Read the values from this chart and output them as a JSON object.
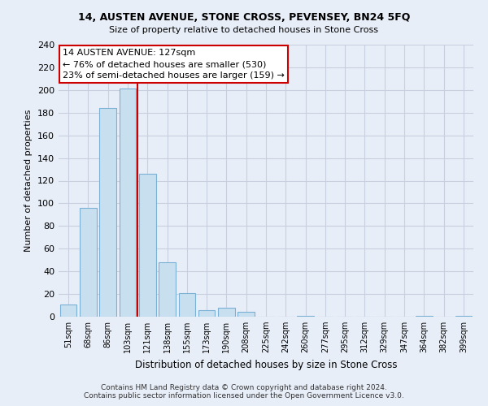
{
  "title": "14, AUSTEN AVENUE, STONE CROSS, PEVENSEY, BN24 5FQ",
  "subtitle": "Size of property relative to detached houses in Stone Cross",
  "xlabel": "Distribution of detached houses by size in Stone Cross",
  "ylabel": "Number of detached properties",
  "bar_labels": [
    "51sqm",
    "68sqm",
    "86sqm",
    "103sqm",
    "121sqm",
    "138sqm",
    "155sqm",
    "173sqm",
    "190sqm",
    "208sqm",
    "225sqm",
    "242sqm",
    "260sqm",
    "277sqm",
    "295sqm",
    "312sqm",
    "329sqm",
    "347sqm",
    "364sqm",
    "382sqm",
    "399sqm"
  ],
  "bar_values": [
    11,
    96,
    184,
    201,
    126,
    48,
    21,
    6,
    8,
    4,
    0,
    0,
    1,
    0,
    0,
    0,
    0,
    0,
    1,
    0,
    1
  ],
  "bar_color": "#c8dff0",
  "bar_edge_color": "#7ab0d4",
  "red_line_x": 3.5,
  "ylim": [
    0,
    240
  ],
  "yticks": [
    0,
    20,
    40,
    60,
    80,
    100,
    120,
    140,
    160,
    180,
    200,
    220,
    240
  ],
  "annotation_title": "14 AUSTEN AVENUE: 127sqm",
  "annotation_line1": "← 76% of detached houses are smaller (530)",
  "annotation_line2": "23% of semi-detached houses are larger (159) →",
  "footer_line1": "Contains HM Land Registry data © Crown copyright and database right 2024.",
  "footer_line2": "Contains public sector information licensed under the Open Government Licence v3.0.",
  "bg_color": "#e8eef8",
  "grid_color": "#c8d0e0",
  "annotation_box_color": "#ffffff",
  "annotation_box_edge": "#cc0000",
  "red_line_color": "#cc0000"
}
